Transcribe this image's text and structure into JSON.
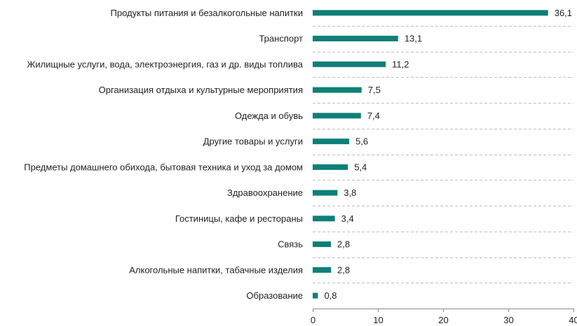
{
  "chart_data": {
    "type": "bar",
    "orientation": "horizontal",
    "categories": [
      "Продукты питания и безалкогольные напитки",
      "Транспорт",
      "Жилищные услуги, вода, электроэнергия, газ и др. виды топлива",
      "Организация отдыха и культурные мероприятия",
      "Одежда и обувь",
      "Другие товары и услуги",
      "Предметы домашнего обихода, бытовая техника и уход за домом",
      "Здравоохранение",
      "Гостиницы, кафе и рестораны",
      "Связь",
      "Алкогольные напитки, табачные изделия",
      "Образование"
    ],
    "values": [
      36.1,
      13.1,
      11.2,
      7.5,
      7.4,
      5.6,
      5.4,
      3.8,
      3.4,
      2.8,
      2.8,
      0.8
    ],
    "value_labels": [
      "36,1",
      "13,1",
      "11,2",
      "7,5",
      "7,4",
      "5,6",
      "5,4",
      "3,8",
      "3,4",
      "2,8",
      "2,8",
      "0,8"
    ],
    "xlim": [
      0,
      40
    ],
    "xticks": [
      0,
      10,
      20,
      30,
      40
    ],
    "grid": true,
    "bar_color": "#0e7f78"
  }
}
